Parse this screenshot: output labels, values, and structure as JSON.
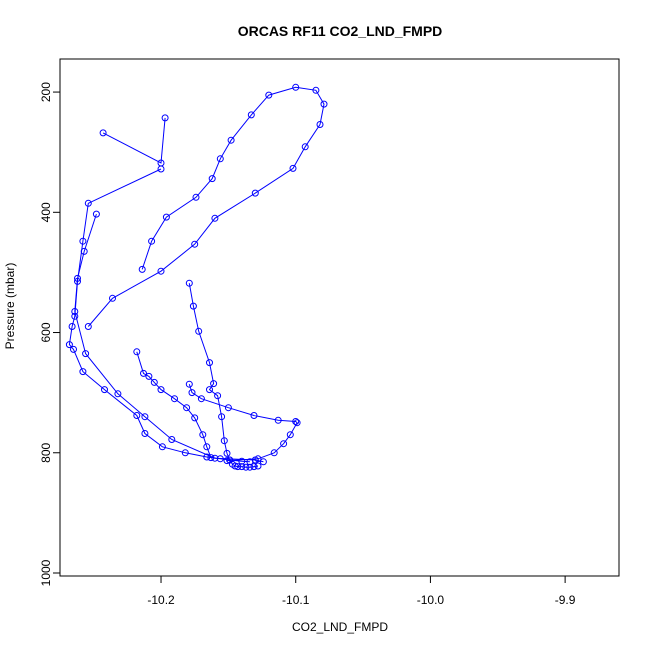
{
  "chart_data": {
    "type": "line",
    "title": "ORCAS RF11 CO2_LND_FMPD",
    "xlabel": "CO2_LND_FMPD",
    "ylabel": "Pressure (mbar)",
    "xlim": [
      -10.275,
      -9.86
    ],
    "ylim": [
      1005,
      145
    ],
    "y_axis_inverted": true,
    "x_ticks": [
      -10.2,
      -10.1,
      -10.0,
      -9.9
    ],
    "x_tick_labels": [
      "-10.2",
      "-10.1",
      "-10.0",
      "-9.9"
    ],
    "y_ticks": [
      200,
      400,
      600,
      800,
      1000
    ],
    "y_tick_labels": [
      "200",
      "400",
      "600",
      "800",
      "1000"
    ],
    "grid": false,
    "legend": "none",
    "marker": "open-circle",
    "series_color": "#0000ff",
    "series": [
      {
        "x": [
          -10.197,
          -10.2,
          -10.243
        ],
        "y": [
          243,
          318,
          268
        ]
      },
      {
        "x": [
          -10.2,
          -10.254,
          -10.258,
          -10.262,
          -10.264,
          -10.266,
          -10.268,
          -10.265,
          -10.258,
          -10.242,
          -10.218,
          -10.212,
          -10.199,
          -10.182,
          -10.166,
          -10.156,
          -10.149,
          -10.14,
          -10.134
        ],
        "y": [
          328,
          385,
          448,
          515,
          573,
          590,
          620,
          628,
          665,
          695,
          738,
          768,
          790,
          800,
          807,
          810,
          812,
          814,
          815
        ]
      },
      {
        "x": [
          -10.248,
          -10.257,
          -10.262,
          -10.264,
          -10.256,
          -10.232,
          -10.212,
          -10.192,
          -10.16,
          -10.13,
          -10.124
        ],
        "y": [
          403,
          465,
          510,
          565,
          635,
          702,
          740,
          778,
          809,
          812,
          815
        ]
      },
      {
        "x": [
          -10.254,
          -10.236,
          -10.2,
          -10.175,
          -10.16,
          -10.13,
          -10.102,
          -10.093,
          -10.082,
          -10.079,
          -10.085,
          -10.1,
          -10.12,
          -10.133,
          -10.148,
          -10.156,
          -10.162,
          -10.174,
          -10.196,
          -10.207,
          -10.214
        ],
        "y": [
          590,
          543,
          498,
          453,
          410,
          368,
          327,
          291,
          254,
          220,
          197,
          192,
          205,
          238,
          280,
          311,
          344,
          375,
          408,
          448,
          495
        ]
      },
      {
        "x": [
          -10.179,
          -10.176,
          -10.172,
          -10.164,
          -10.161,
          -10.164,
          -10.158,
          -10.155,
          -10.153,
          -10.151,
          -10.149,
          -10.147,
          -10.145,
          -10.143,
          -10.14,
          -10.137,
          -10.134,
          -10.131,
          -10.128
        ],
        "y": [
          518,
          556,
          598,
          650,
          685,
          695,
          705,
          740,
          780,
          801,
          812,
          819,
          822,
          823,
          823,
          824,
          824,
          823,
          822
        ]
      },
      {
        "x": [
          -10.218,
          -10.213,
          -10.209,
          -10.205,
          -10.2,
          -10.19,
          -10.181,
          -10.175,
          -10.169,
          -10.166,
          -10.163
        ],
        "y": [
          632,
          668,
          673,
          683,
          695,
          710,
          725,
          742,
          770,
          790,
          808
        ]
      },
      {
        "x": [
          -10.151,
          -10.128,
          -10.116,
          -10.109,
          -10.104,
          -10.099,
          -10.1,
          -10.113,
          -10.131,
          -10.15,
          -10.17,
          -10.177,
          -10.179
        ],
        "y": [
          813,
          810,
          800,
          785,
          770,
          750,
          748,
          746,
          738,
          725,
          710,
          700,
          686
        ]
      }
    ]
  }
}
